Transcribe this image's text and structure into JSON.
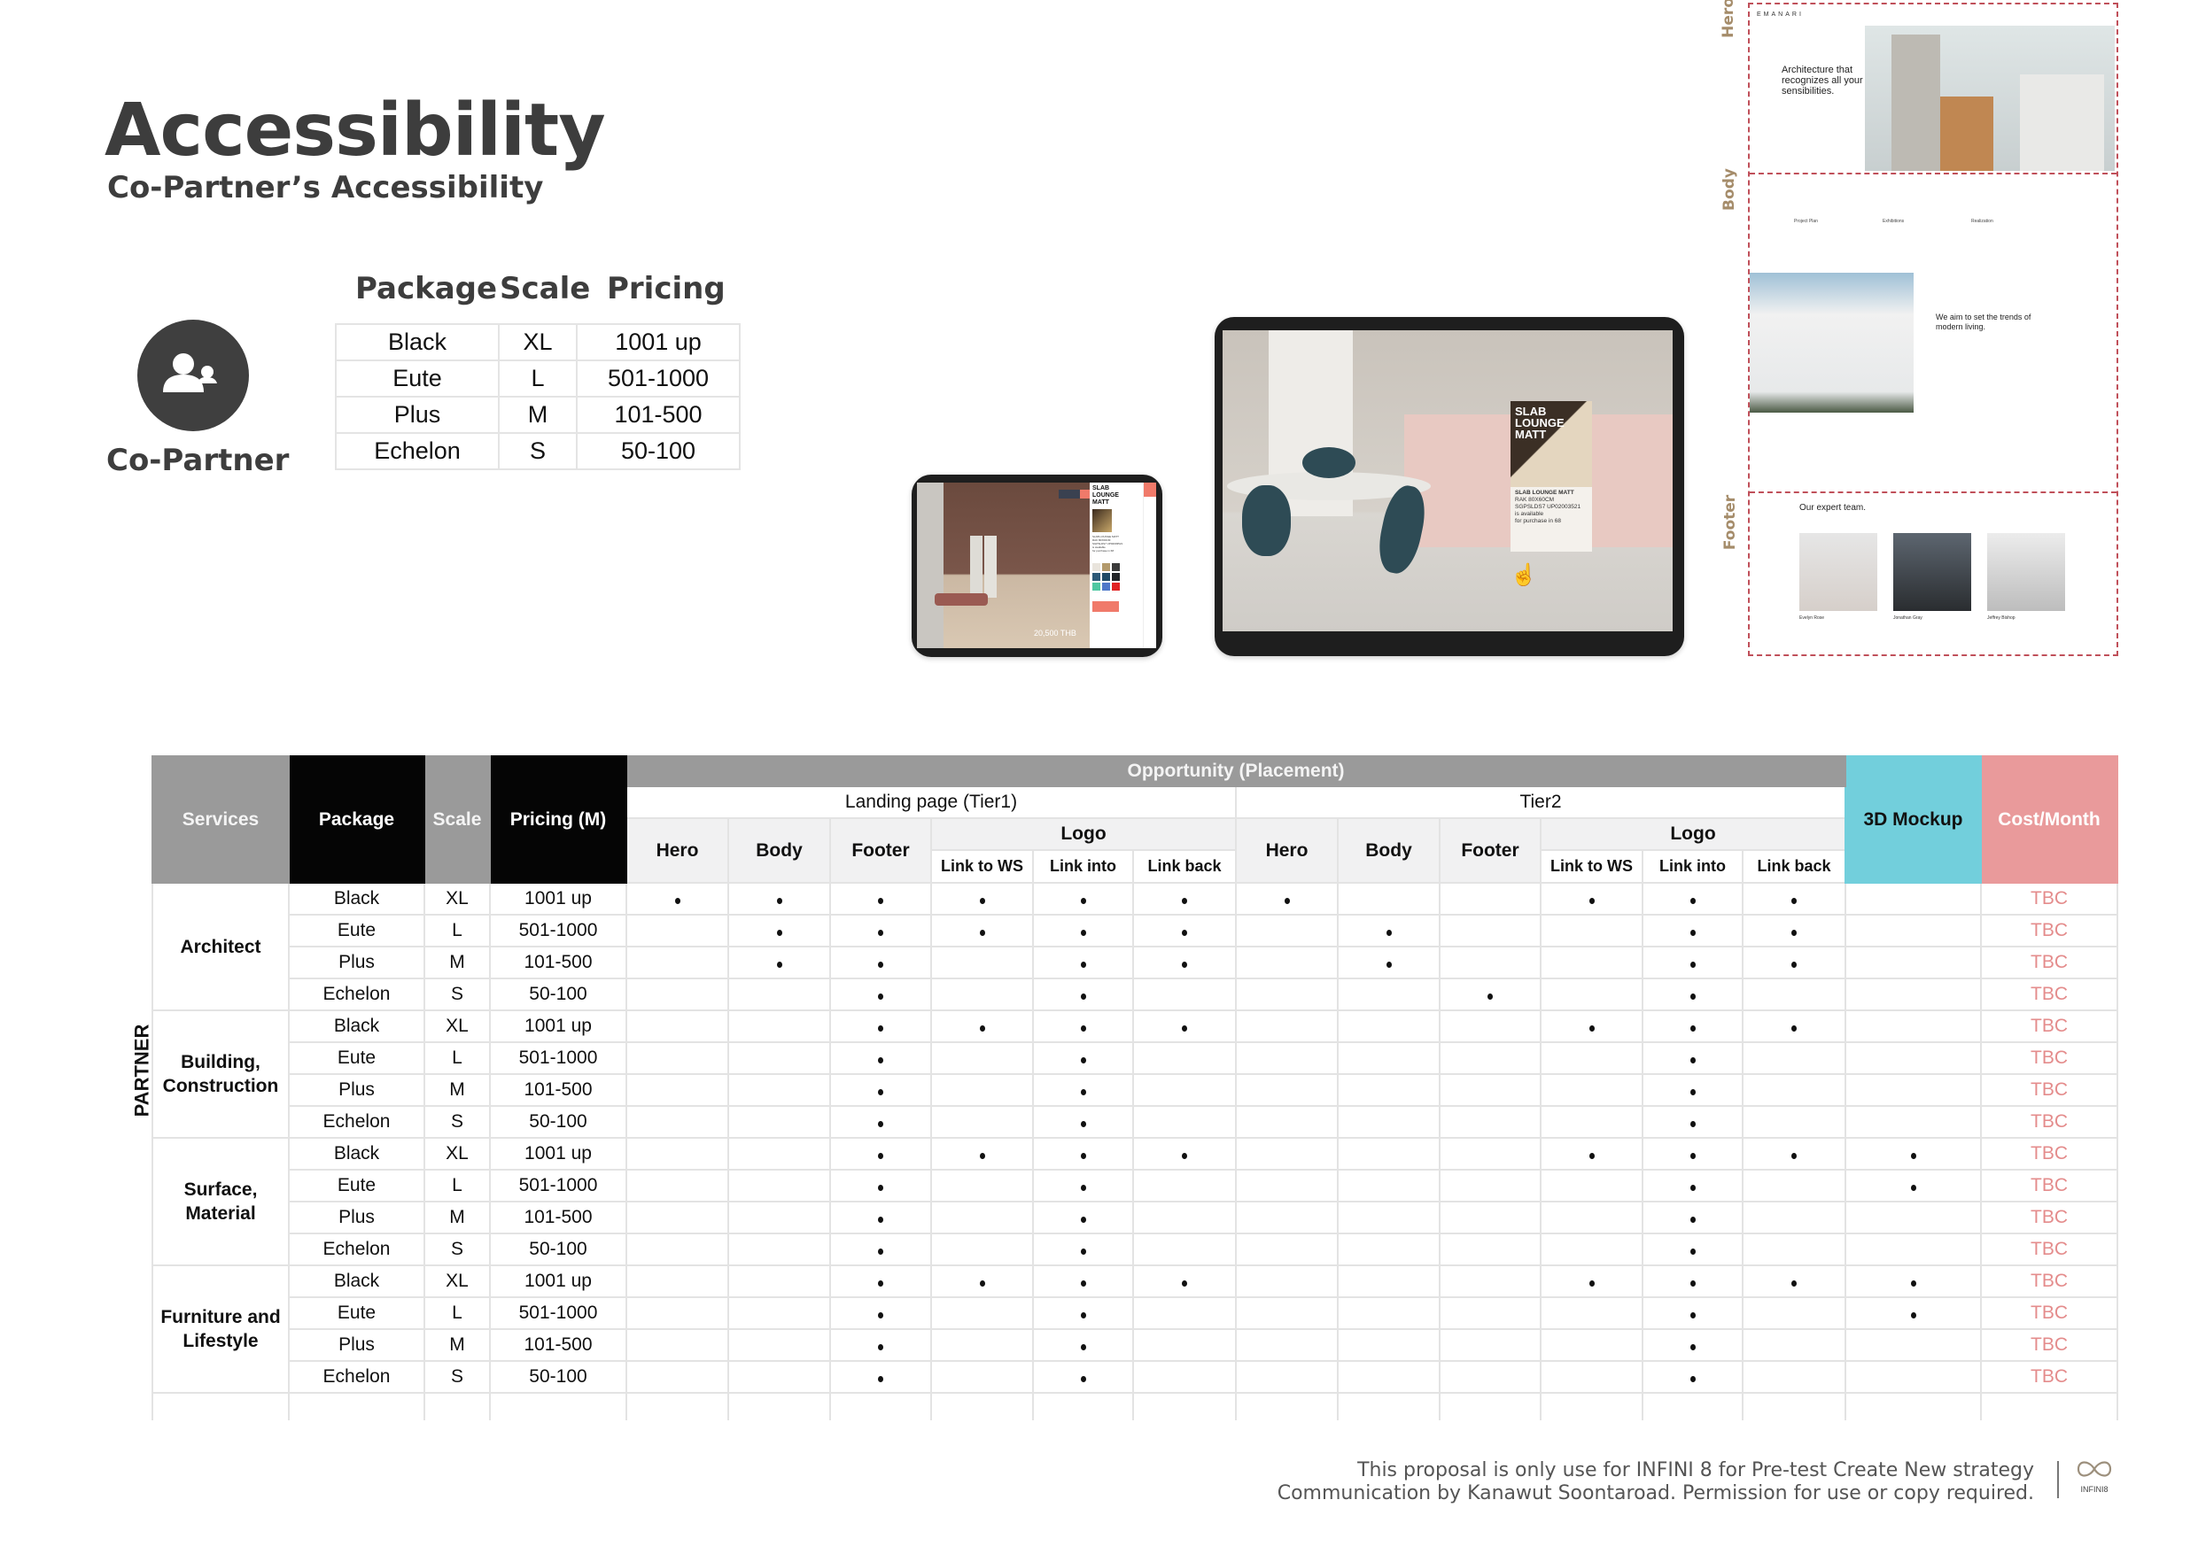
{
  "header": {
    "title": "Accessibility",
    "subtitle": "Co-Partner’s Accessibility"
  },
  "partner": {
    "icon": "users-icon",
    "label": "Co-Partner"
  },
  "small_table": {
    "headers": [
      "Package",
      "Scale",
      "Pricing"
    ],
    "rows": [
      [
        "Black",
        "XL",
        "1001 up"
      ],
      [
        "Eute",
        "L",
        "501-1000"
      ],
      [
        "Plus",
        "M",
        "101-500"
      ],
      [
        "Echelon",
        "S",
        "50-100"
      ]
    ]
  },
  "tablet_small": {
    "product_title": "SLAB LOUNGE MATT",
    "product_info": [
      "SLAB LOUNGE MATT",
      "RAK 80X60CM",
      "SGPSLDS7 UP02003521",
      "is available",
      "for purchase in 68"
    ],
    "price": "20,500 THB",
    "swatches": [
      "#e9e4dc",
      "#b39a6c",
      "#3b3b3b",
      "#2d5a78",
      "#1f4a66",
      "#222428",
      "#4fc7a2",
      "#4f78c9",
      "#e02323"
    ]
  },
  "tablet_large": {
    "overlay_title": "SLAB LOUNGE MATT",
    "product_info": [
      "SLAB LOUNGE MATT",
      "RAK 80X60CM",
      "SGPSLDS7 UP02003521",
      "is available",
      "for purchase in 68"
    ]
  },
  "site_mockup": {
    "section_labels": [
      "Hero",
      "Body",
      "Footer"
    ],
    "brand": "EMANARI",
    "hero_heading": "Architecture that recognizes all your sensibilities.",
    "features": [
      "Project Plan",
      "Exhibitions",
      "Realization"
    ],
    "aim_heading": "We aim to set the trends of modern living.",
    "team_heading": "Our expert team.",
    "team": [
      "Evelyn Rose",
      "Jonathan Gray",
      "Jeffrey Bishop"
    ],
    "border_color": "#c0505a"
  },
  "main_table": {
    "headers": {
      "services": "Services",
      "package": "Package",
      "scale": "Scale",
      "pricing": "Pricing (M)",
      "opportunity": "Opportunity (Placement)",
      "tier1": "Landing page (Tier1)",
      "tier2": "Tier2",
      "hero": "Hero",
      "body": "Body",
      "footer": "Footer",
      "logo": "Logo",
      "link_ws": "Link to WS",
      "link_into": "Link into",
      "link_back": "Link back",
      "mockup": "3D Mockup",
      "cost": "Cost/Month"
    },
    "side_label": "PARTNER",
    "flag_columns": [
      "T1 Hero",
      "T1 Body",
      "T1 Footer",
      "T1 Link to WS",
      "T1 Link into",
      "T1 Link back",
      "T2 Hero",
      "T2 Body",
      "T2 Footer",
      "T2 Link to WS",
      "T2 Link into",
      "T2 Link back",
      "3D Mockup"
    ],
    "groups": [
      {
        "service": "Architect",
        "rows": [
          {
            "package": "Black",
            "scale": "XL",
            "pricing": "1001 up",
            "flags": [
              1,
              1,
              1,
              1,
              1,
              1,
              1,
              0,
              0,
              1,
              1,
              1,
              0
            ],
            "cost": "TBC"
          },
          {
            "package": "Eute",
            "scale": "L",
            "pricing": "501-1000",
            "flags": [
              0,
              1,
              1,
              1,
              1,
              1,
              0,
              1,
              0,
              0,
              1,
              1,
              0
            ],
            "cost": "TBC"
          },
          {
            "package": "Plus",
            "scale": "M",
            "pricing": "101-500",
            "flags": [
              0,
              1,
              1,
              0,
              1,
              1,
              0,
              1,
              0,
              0,
              1,
              1,
              0
            ],
            "cost": "TBC"
          },
          {
            "package": "Echelon",
            "scale": "S",
            "pricing": "50-100",
            "flags": [
              0,
              0,
              1,
              0,
              1,
              0,
              0,
              0,
              1,
              0,
              1,
              0,
              0
            ],
            "cost": "TBC"
          }
        ]
      },
      {
        "service": "Building, Construction",
        "rows": [
          {
            "package": "Black",
            "scale": "XL",
            "pricing": "1001 up",
            "flags": [
              0,
              0,
              1,
              1,
              1,
              1,
              0,
              0,
              0,
              1,
              1,
              1,
              0
            ],
            "cost": "TBC"
          },
          {
            "package": "Eute",
            "scale": "L",
            "pricing": "501-1000",
            "flags": [
              0,
              0,
              1,
              0,
              1,
              0,
              0,
              0,
              0,
              0,
              1,
              0,
              0
            ],
            "cost": "TBC"
          },
          {
            "package": "Plus",
            "scale": "M",
            "pricing": "101-500",
            "flags": [
              0,
              0,
              1,
              0,
              1,
              0,
              0,
              0,
              0,
              0,
              1,
              0,
              0
            ],
            "cost": "TBC"
          },
          {
            "package": "Echelon",
            "scale": "S",
            "pricing": "50-100",
            "flags": [
              0,
              0,
              1,
              0,
              1,
              0,
              0,
              0,
              0,
              0,
              1,
              0,
              0
            ],
            "cost": "TBC"
          }
        ]
      },
      {
        "service": "Surface, Material",
        "rows": [
          {
            "package": "Black",
            "scale": "XL",
            "pricing": "1001 up",
            "flags": [
              0,
              0,
              1,
              1,
              1,
              1,
              0,
              0,
              0,
              1,
              1,
              1,
              1
            ],
            "cost": "TBC"
          },
          {
            "package": "Eute",
            "scale": "L",
            "pricing": "501-1000",
            "flags": [
              0,
              0,
              1,
              0,
              1,
              0,
              0,
              0,
              0,
              0,
              1,
              0,
              1
            ],
            "cost": "TBC"
          },
          {
            "package": "Plus",
            "scale": "M",
            "pricing": "101-500",
            "flags": [
              0,
              0,
              1,
              0,
              1,
              0,
              0,
              0,
              0,
              0,
              1,
              0,
              0
            ],
            "cost": "TBC"
          },
          {
            "package": "Echelon",
            "scale": "S",
            "pricing": "50-100",
            "flags": [
              0,
              0,
              1,
              0,
              1,
              0,
              0,
              0,
              0,
              0,
              1,
              0,
              0
            ],
            "cost": "TBC"
          }
        ]
      },
      {
        "service": "Furniture and Lifestyle",
        "rows": [
          {
            "package": "Black",
            "scale": "XL",
            "pricing": "1001 up",
            "flags": [
              0,
              0,
              1,
              1,
              1,
              1,
              0,
              0,
              0,
              1,
              1,
              1,
              1
            ],
            "cost": "TBC"
          },
          {
            "package": "Eute",
            "scale": "L",
            "pricing": "501-1000",
            "flags": [
              0,
              0,
              1,
              0,
              1,
              0,
              0,
              0,
              0,
              0,
              1,
              0,
              1
            ],
            "cost": "TBC"
          },
          {
            "package": "Plus",
            "scale": "M",
            "pricing": "101-500",
            "flags": [
              0,
              0,
              1,
              0,
              1,
              0,
              0,
              0,
              0,
              0,
              1,
              0,
              0
            ],
            "cost": "TBC"
          },
          {
            "package": "Echelon",
            "scale": "S",
            "pricing": "50-100",
            "flags": [
              0,
              0,
              1,
              0,
              1,
              0,
              0,
              0,
              0,
              0,
              1,
              0,
              0
            ],
            "cost": "TBC"
          }
        ]
      }
    ],
    "colors": {
      "header_grey": "#9a9a9a",
      "header_black": "#050505",
      "mockup": "#72cfdc",
      "cost": "#e99a9b",
      "tbc": "#e48c8c"
    }
  },
  "footer": {
    "line1": "This proposal is only use for INFINI 8 for Pre-test Create New strategy",
    "line2": "Communication by Kanawut Soontaroad. Permission for use or copy required.",
    "logo_text": "INFINI8"
  }
}
